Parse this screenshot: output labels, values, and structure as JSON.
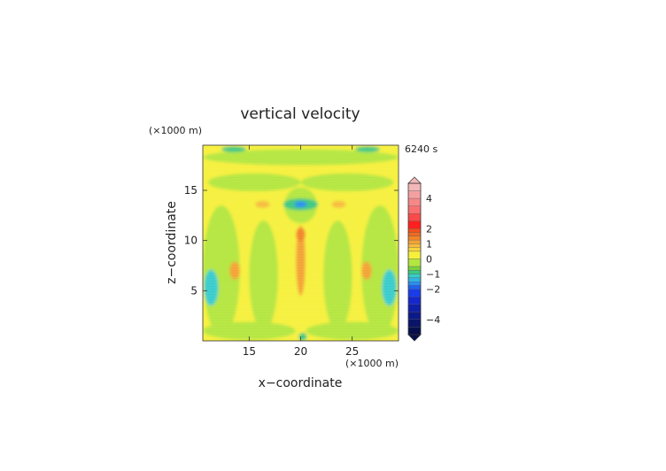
{
  "chart_data": {
    "type": "heatmap",
    "title": "vertical velocity",
    "xlabel": "x−coordinate",
    "ylabel": "z−coordinate",
    "x_unit": "(×1000 m)",
    "y_unit": "(×1000 m)",
    "time_label": "6240 s",
    "xlim": [
      10.5,
      29.5
    ],
    "ylim": [
      0,
      19.5
    ],
    "x_ticks": [
      {
        "value": 15,
        "label": "15"
      },
      {
        "value": 20,
        "label": "20"
      },
      {
        "value": 25,
        "label": "25"
      }
    ],
    "y_ticks": [
      {
        "value": 5,
        "label": "5"
      },
      {
        "value": 10,
        "label": "10"
      },
      {
        "value": 15,
        "label": "15"
      }
    ],
    "colorbar": {
      "range": [
        -5,
        5
      ],
      "ticks": [
        {
          "value": 4,
          "label": "4"
        },
        {
          "value": 2,
          "label": "2"
        },
        {
          "value": 1,
          "label": "1"
        },
        {
          "value": 0,
          "label": "0"
        },
        {
          "value": -1,
          "label": "−1"
        },
        {
          "value": -2,
          "label": "−2"
        },
        {
          "value": -4,
          "label": "−4"
        }
      ],
      "bands": [
        {
          "from": 4.5,
          "to": 5,
          "color": "#f2b8b8"
        },
        {
          "from": 4,
          "to": 4.5,
          "color": "#f4a0a0"
        },
        {
          "from": 3.5,
          "to": 4,
          "color": "#f68888"
        },
        {
          "from": 3,
          "to": 3.5,
          "color": "#f87070"
        },
        {
          "from": 2.5,
          "to": 3,
          "color": "#fb4a4a"
        },
        {
          "from": 2,
          "to": 2.5,
          "color": "#ff2020"
        },
        {
          "from": 1.75,
          "to": 2,
          "color": "#f4501a"
        },
        {
          "from": 1.5,
          "to": 1.75,
          "color": "#ef6a22"
        },
        {
          "from": 1.25,
          "to": 1.5,
          "color": "#f2842a"
        },
        {
          "from": 1,
          "to": 1.25,
          "color": "#f4a236"
        },
        {
          "from": 0.75,
          "to": 1,
          "color": "#f6bc3c"
        },
        {
          "from": 0.5,
          "to": 0.75,
          "color": "#f8d43e"
        },
        {
          "from": 0,
          "to": 0.5,
          "color": "#f6f03c"
        },
        {
          "from": -0.5,
          "to": 0,
          "color": "#b4e640"
        },
        {
          "from": -0.75,
          "to": -0.5,
          "color": "#78d23c"
        },
        {
          "from": -1,
          "to": -0.75,
          "color": "#3ec882"
        },
        {
          "from": -1.25,
          "to": -1,
          "color": "#38cccc"
        },
        {
          "from": -1.5,
          "to": -1.25,
          "color": "#30b4e0"
        },
        {
          "from": -1.75,
          "to": -1.5,
          "color": "#2a8cf0"
        },
        {
          "from": -2,
          "to": -1.75,
          "color": "#1e62f0"
        },
        {
          "from": -2.5,
          "to": -2,
          "color": "#1a3ce8"
        },
        {
          "from": -3,
          "to": -2.5,
          "color": "#1528cc"
        },
        {
          "from": -3.5,
          "to": -3,
          "color": "#1020a8"
        },
        {
          "from": -4,
          "to": -3.5,
          "color": "#0c1a88"
        },
        {
          "from": -4.5,
          "to": -4,
          "color": "#0a1468"
        },
        {
          "from": -5,
          "to": -4.5,
          "color": "#08104c"
        }
      ]
    },
    "fields": [
      {
        "name": "background",
        "value": 0.2,
        "x": 20,
        "z": 9.75,
        "rx": 9.5,
        "rz": 9.75,
        "kind": "rect"
      },
      {
        "name": "green-left-column",
        "value": -0.2,
        "x": 12.3,
        "z": 7,
        "rx": 1.8,
        "rz": 6.5
      },
      {
        "name": "green-right-column",
        "value": -0.2,
        "x": 27.7,
        "z": 7,
        "rx": 1.8,
        "rz": 6.5
      },
      {
        "name": "green-left-inner",
        "value": -0.2,
        "x": 16.4,
        "z": 6.5,
        "rx": 1.4,
        "rz": 5.5
      },
      {
        "name": "green-right-inner",
        "value": -0.2,
        "x": 23.6,
        "z": 6.5,
        "rx": 1.4,
        "rz": 5.5
      },
      {
        "name": "green-top-band",
        "value": -0.2,
        "x": 20,
        "z": 18.3,
        "rx": 9.5,
        "rz": 0.8
      },
      {
        "name": "green-upper-arc-left",
        "value": -0.2,
        "x": 15.5,
        "z": 15.8,
        "rx": 4.5,
        "rz": 0.9
      },
      {
        "name": "green-upper-arc-right",
        "value": -0.2,
        "x": 24.5,
        "z": 15.8,
        "rx": 4.5,
        "rz": 0.9
      },
      {
        "name": "green-center-v",
        "value": -0.2,
        "x": 20,
        "z": 13.5,
        "rx": 1.6,
        "rz": 1.8
      },
      {
        "name": "green-bottom-left",
        "value": -0.2,
        "x": 15,
        "z": 1,
        "rx": 4.5,
        "rz": 0.9
      },
      {
        "name": "green-bottom-right",
        "value": -0.2,
        "x": 25,
        "z": 1,
        "rx": 4.5,
        "rz": 0.9
      },
      {
        "name": "cyan-left-lower",
        "value": -1.1,
        "x": 11.3,
        "z": 5.3,
        "rx": 0.7,
        "rz": 1.8
      },
      {
        "name": "cyan-right-lower",
        "value": -1.1,
        "x": 28.6,
        "z": 5.3,
        "rx": 0.7,
        "rz": 1.8
      },
      {
        "name": "cyan-center-upper",
        "value": -1.0,
        "x": 20,
        "z": 13.6,
        "rx": 1.7,
        "rz": 0.6
      },
      {
        "name": "blue-center-upper",
        "value": -1.6,
        "x": 20,
        "z": 13.6,
        "rx": 0.6,
        "rz": 0.3
      },
      {
        "name": "cyan-top-left",
        "value": -1.0,
        "x": 13.5,
        "z": 19.1,
        "rx": 1.2,
        "rz": 0.3
      },
      {
        "name": "cyan-top-right",
        "value": -1.0,
        "x": 26.5,
        "z": 19.1,
        "rx": 1.2,
        "rz": 0.3
      },
      {
        "name": "cyan-bottom-center",
        "value": -1.0,
        "x": 20.2,
        "z": 0.4,
        "rx": 0.4,
        "rz": 0.4
      },
      {
        "name": "orange-center-column",
        "value": 1.0,
        "x": 20,
        "z": 8.0,
        "rx": 0.45,
        "rz": 3.5
      },
      {
        "name": "orange-center-top",
        "value": 1.4,
        "x": 20,
        "z": 10.6,
        "rx": 0.45,
        "rz": 0.7
      },
      {
        "name": "orange-left-mid",
        "value": 1.0,
        "x": 13.6,
        "z": 7.0,
        "rx": 0.5,
        "rz": 0.9
      },
      {
        "name": "orange-right-mid",
        "value": 1.0,
        "x": 26.4,
        "z": 7.0,
        "rx": 0.5,
        "rz": 0.9
      },
      {
        "name": "orange-left-upper",
        "value": 0.9,
        "x": 16.3,
        "z": 13.6,
        "rx": 0.7,
        "rz": 0.35
      },
      {
        "name": "orange-right-upper",
        "value": 0.9,
        "x": 23.7,
        "z": 13.6,
        "rx": 0.7,
        "rz": 0.35
      }
    ]
  }
}
